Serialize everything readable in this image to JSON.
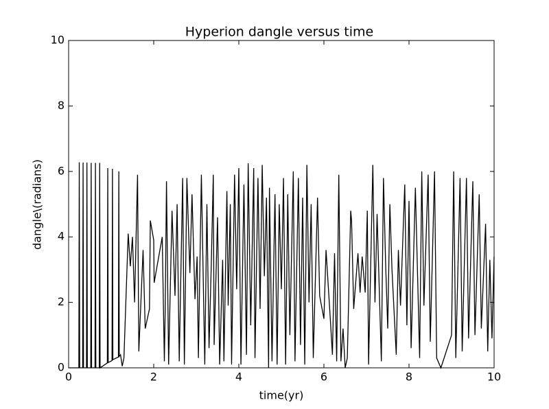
{
  "chart_data": {
    "type": "line",
    "title": "Hyperion dangle versus time",
    "xlabel": "time(yr)",
    "ylabel": "dangle\\(radians)",
    "color": "#000000",
    "xlim": [
      0,
      10
    ],
    "ylim": [
      0,
      10
    ],
    "xticks": [
      0,
      2,
      4,
      6,
      8,
      10
    ],
    "yticks": [
      0,
      2,
      4,
      6,
      8,
      10
    ],
    "x": [
      0,
      0.24,
      0.25,
      0.26,
      0.33,
      0.34,
      0.35,
      0.42,
      0.43,
      0.44,
      0.52,
      0.53,
      0.54,
      0.62,
      0.63,
      0.64,
      0.72,
      0.73,
      0.74,
      0.91,
      0.92,
      0.93,
      1.02,
      1.03,
      1.04,
      1.17,
      1.18,
      1.19,
      1.22,
      1.26,
      1.3,
      1.4,
      1.45,
      1.5,
      1.55,
      1.62,
      1.65,
      1.75,
      1.8,
      1.9,
      1.92,
      2.0,
      2.01,
      2.2,
      2.25,
      2.27,
      2.3,
      2.35,
      2.43,
      2.5,
      2.55,
      2.6,
      2.68,
      2.72,
      2.78,
      2.85,
      2.9,
      2.97,
      3.02,
      3.05,
      3.12,
      3.2,
      3.25,
      3.3,
      3.35,
      3.4,
      3.42,
      3.5,
      3.55,
      3.62,
      3.65,
      3.72,
      3.75,
      3.8,
      3.83,
      3.9,
      3.95,
      4.0,
      4.05,
      4.12,
      4.18,
      4.22,
      4.28,
      4.35,
      4.38,
      4.45,
      4.5,
      4.55,
      4.6,
      4.65,
      4.7,
      4.72,
      4.78,
      4.85,
      4.9,
      4.95,
      5.0,
      5.05,
      5.1,
      5.15,
      5.2,
      5.28,
      5.32,
      5.4,
      5.45,
      5.5,
      5.55,
      5.6,
      5.65,
      5.7,
      5.75,
      5.85,
      5.9,
      6.0,
      6.05,
      6.15,
      6.2,
      6.25,
      6.3,
      6.35,
      6.4,
      6.45,
      6.5,
      6.55,
      6.63,
      6.65,
      6.7,
      6.8,
      6.85,
      6.9,
      6.97,
      7.02,
      7.05,
      7.15,
      7.2,
      7.25,
      7.35,
      7.4,
      7.45,
      7.5,
      7.55,
      7.6,
      7.7,
      7.75,
      7.8,
      7.9,
      7.95,
      8.0,
      8.05,
      8.15,
      8.25,
      8.3,
      8.35,
      8.45,
      8.5,
      8.6,
      8.65,
      8.75,
      9.0,
      9.05,
      9.1,
      9.2,
      9.25,
      9.35,
      9.4,
      9.5,
      9.55,
      9.65,
      9.7,
      9.8,
      9.85,
      9.9,
      9.95,
      10
    ],
    "values": [
      0,
      0,
      6.28,
      0,
      0,
      6.27,
      0,
      0,
      6.27,
      0,
      0,
      6.26,
      0,
      0,
      6.26,
      0,
      0,
      6.26,
      0,
      0.15,
      6.1,
      0.16,
      0.22,
      6.08,
      0.25,
      0.33,
      6.0,
      0.35,
      0.4,
      0.05,
      0.3,
      4.1,
      3.1,
      4.0,
      2.0,
      5.9,
      0.5,
      3.6,
      1.2,
      1.8,
      4.5,
      3.9,
      2.6,
      4.0,
      0.2,
      1.8,
      5.7,
      0.1,
      4.8,
      2.2,
      5.0,
      0.2,
      5.8,
      0.1,
      5.8,
      2.9,
      5.3,
      2.1,
      3.4,
      0.3,
      5.9,
      0.1,
      5.0,
      0.6,
      3.0,
      5.9,
      0.7,
      4.6,
      0.1,
      3.3,
      0.2,
      5.4,
      1.9,
      5.0,
      0.1,
      5.9,
      2.4,
      6.1,
      0.1,
      5.6,
      0.4,
      6.25,
      1.3,
      6.1,
      0.3,
      5.8,
      1.8,
      6.2,
      2.8,
      5.2,
      0,
      5.5,
      0.2,
      5.3,
      0.1,
      5.0,
      2.4,
      5.8,
      0.1,
      5.3,
      1.0,
      6.0,
      0.2,
      5.8,
      0.7,
      5.2,
      0.1,
      6.2,
      2.0,
      5.0,
      0.3,
      5.2,
      2.2,
      1.5,
      3.6,
      1.5,
      0.4,
      3.5,
      0.2,
      5.9,
      0.2,
      1.2,
      0,
      0.3,
      4.8,
      4.5,
      1.8,
      3.5,
      2.3,
      3.4,
      2.3,
      4.8,
      0.1,
      6.2,
      2.0,
      4.7,
      0.2,
      5.8,
      3.2,
      1.2,
      5.0,
      3.0,
      0.4,
      3.6,
      1.9,
      5.6,
      1.3,
      5.1,
      0.6,
      5.5,
      0.3,
      6.0,
      1.9,
      5.9,
      0.8,
      6.0,
      0.3,
      0,
      1.0,
      6.0,
      0.3,
      5.8,
      0.5,
      5.8,
      0.9,
      5.7,
      1.0,
      5.3,
      1.2,
      4.4,
      0.5,
      3.3,
      0.9,
      3.4
    ]
  }
}
